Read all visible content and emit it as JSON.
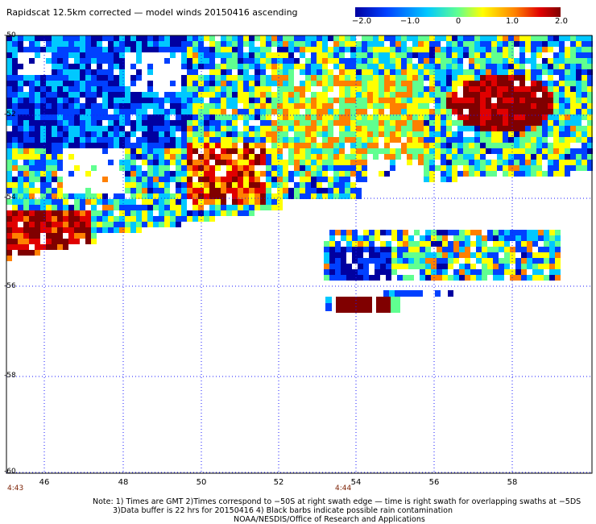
{
  "title": "Rapidscat 12.5km corrected — model winds 20150416 ascending",
  "colorbar": {
    "min": -2.0,
    "max": 2.0,
    "tick_labels": [
      "−2.0",
      "−1.0",
      "0",
      "1.0",
      "2.0"
    ],
    "colors": [
      "#0000a0",
      "#0040ff",
      "#00c8ff",
      "#60ff90",
      "#ffff00",
      "#ff8000",
      "#e00000",
      "#800000"
    ]
  },
  "axes": {
    "lat_labels": [
      "-50",
      "-52",
      "-54",
      "-56",
      "-58",
      "-60"
    ],
    "lon_labels": [
      "46",
      "48",
      "50",
      "52",
      "54",
      "56",
      "58"
    ],
    "time_labels": [
      "4:43",
      "4:44"
    ]
  },
  "notes": {
    "line1": "Note: 1) Times are GMT 2)Times correspond to −50S at right swath edge — time is right swath for overlapping swaths at −5DS",
    "line2": "3)Data buffer is 22 hrs for 20150416 4) Black barbs indicate possible rain contamination",
    "line3": "NOAA/NESDIS/Office of Research and Applications"
  }
}
